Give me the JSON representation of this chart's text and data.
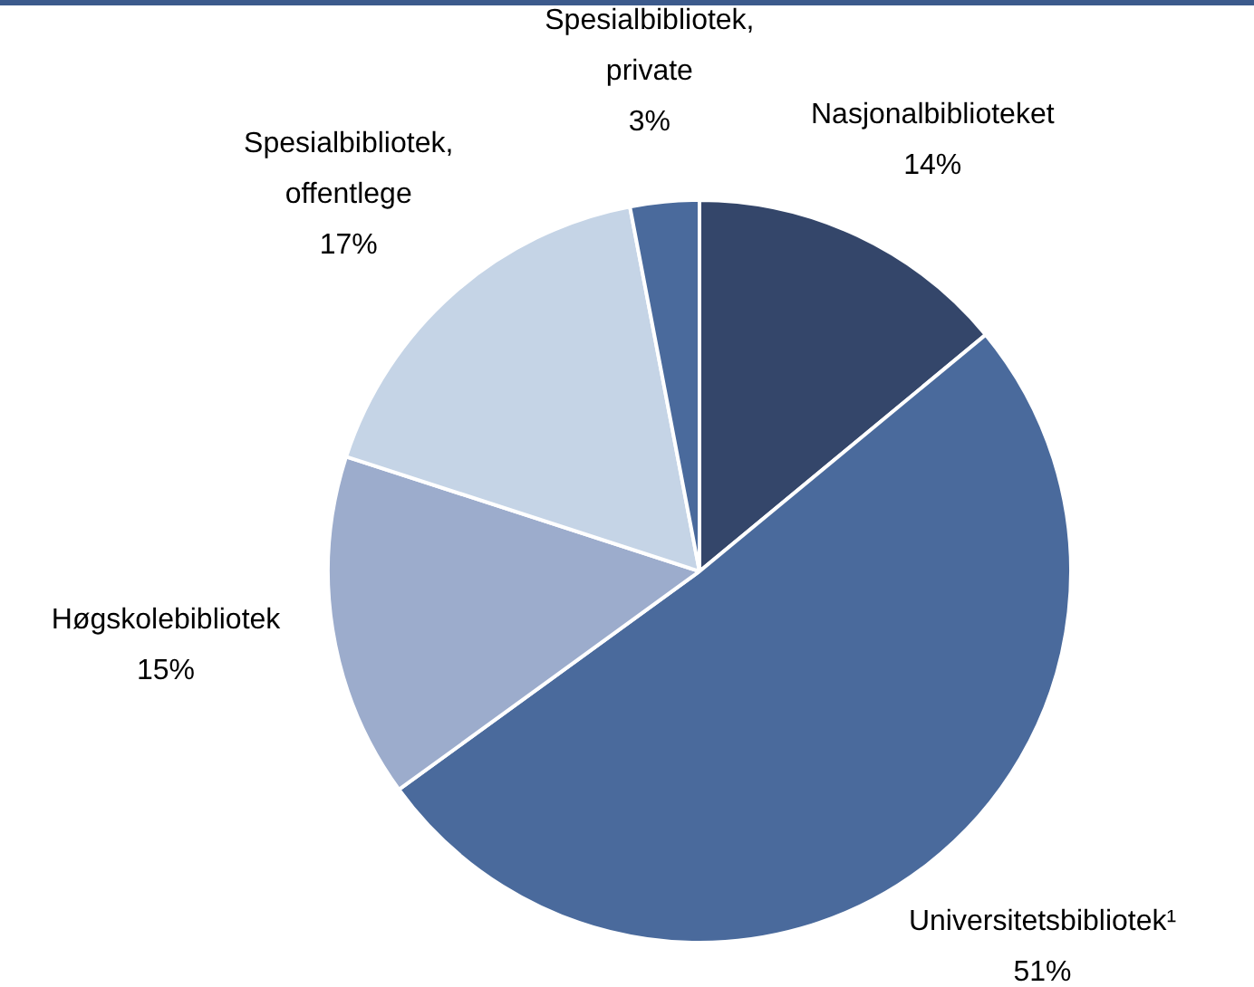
{
  "chart_data": {
    "type": "pie",
    "categories": [
      "Nasjonalbiblioteket",
      "Universitetsbibliotek¹",
      "Høgskolebibliotek",
      "Spesialbibliotek, offentlege",
      "Spesialbibliotek, private"
    ],
    "values": [
      14,
      51,
      15,
      17,
      3
    ],
    "value_labels": [
      "14%",
      "51%",
      "15%",
      "17%",
      "3%"
    ],
    "colors": [
      "#34466a",
      "#4a6a9c",
      "#9caccc",
      "#c5d4e6",
      "#4a6a9c"
    ],
    "legend": false
  }
}
